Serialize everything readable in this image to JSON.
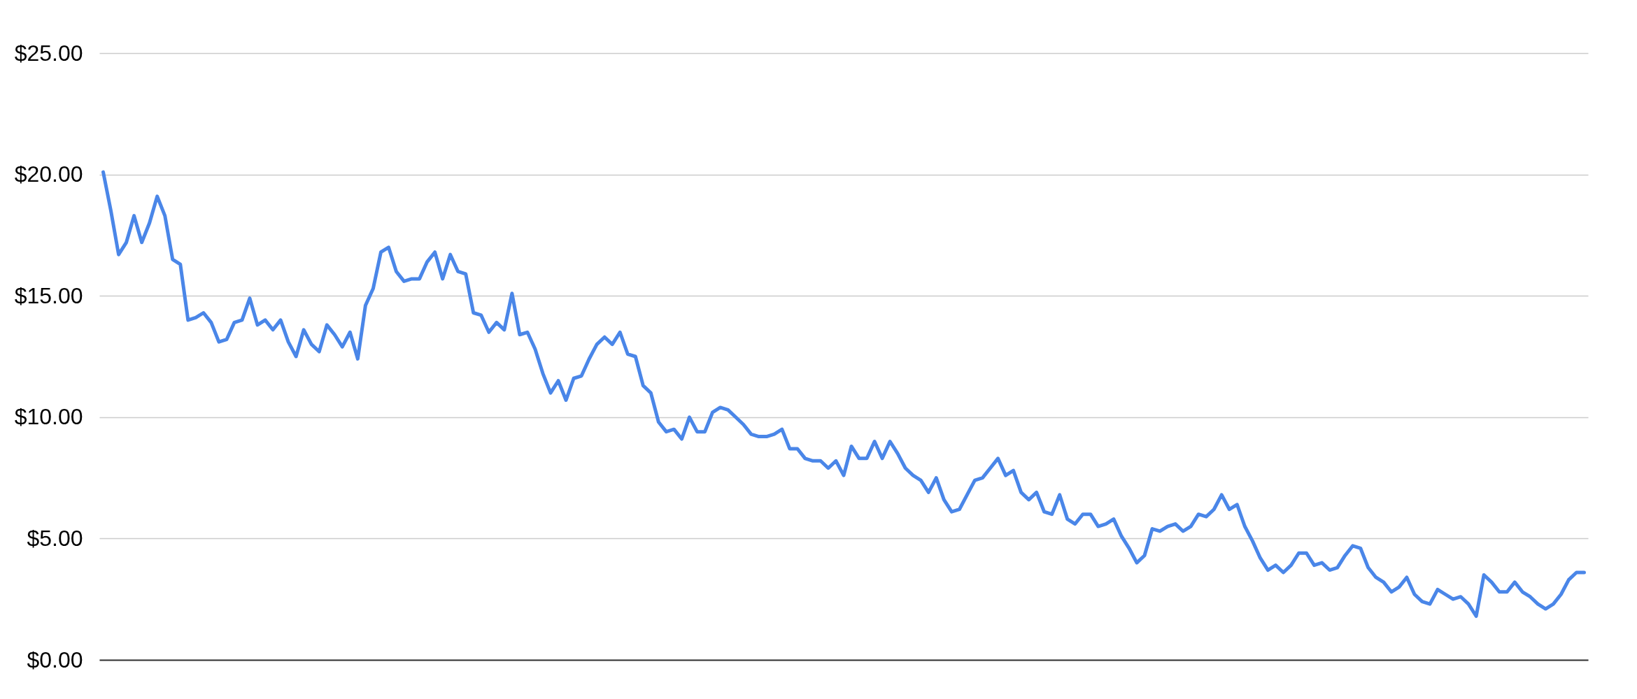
{
  "chart_data": {
    "type": "line",
    "categories": [
      null,
      null,
      null,
      null,
      null,
      null,
      null,
      null,
      null,
      null,
      null,
      null,
      null,
      null,
      null,
      null,
      null,
      null,
      null,
      null,
      null,
      null,
      null,
      null,
      null,
      null,
      null,
      null,
      null,
      null,
      null,
      null,
      null,
      null,
      null,
      null,
      null,
      null,
      null,
      null,
      null,
      null,
      null,
      null,
      null,
      null,
      null,
      null,
      null,
      null,
      null,
      null,
      null,
      null,
      null,
      null,
      null,
      null,
      null,
      null,
      null,
      null,
      null,
      null,
      null,
      null,
      null,
      null,
      null,
      null,
      null,
      null,
      null,
      null,
      null,
      null,
      null,
      null,
      null,
      null,
      null,
      null,
      null,
      null,
      null,
      null,
      null,
      null,
      null,
      null,
      null,
      null,
      null,
      null,
      null,
      null,
      null,
      null,
      null,
      null,
      null,
      null,
      null,
      null,
      null,
      null,
      null,
      null,
      null,
      null,
      null,
      null,
      null,
      null,
      null,
      null,
      null,
      null,
      null,
      null,
      null,
      null,
      null,
      null,
      null,
      null,
      null,
      null,
      null,
      null,
      null,
      null,
      null,
      null,
      null,
      null,
      null,
      null,
      null,
      null,
      null,
      null,
      null,
      null,
      null,
      null,
      null,
      null,
      null,
      null,
      null,
      null,
      null,
      null,
      null,
      null,
      null,
      null,
      null,
      null,
      null,
      null,
      null,
      null,
      null,
      null,
      null,
      null,
      null,
      null,
      null,
      null,
      null,
      null,
      null,
      null,
      null,
      null,
      null,
      null,
      null,
      null,
      null,
      null,
      null,
      null,
      null,
      null,
      null,
      null,
      null,
      null,
      null
    ],
    "series": [
      {
        "color": "#4a86e8",
        "values": [
          20.1,
          18.5,
          16.7,
          17.2,
          18.3,
          17.2,
          18.0,
          19.1,
          18.3,
          16.5,
          16.3,
          14.0,
          14.1,
          14.3,
          13.9,
          13.1,
          13.2,
          13.9,
          14.0,
          14.9,
          13.8,
          14.0,
          13.6,
          14.0,
          13.1,
          12.5,
          13.6,
          13.0,
          12.7,
          13.8,
          13.4,
          12.9,
          13.5,
          12.4,
          14.6,
          15.3,
          16.8,
          17.0,
          16.0,
          15.6,
          15.7,
          15.7,
          16.4,
          16.8,
          15.7,
          16.7,
          16.0,
          15.9,
          14.3,
          14.2,
          13.5,
          13.9,
          13.6,
          15.1,
          13.4,
          13.5,
          12.8,
          11.8,
          11.0,
          11.5,
          10.7,
          11.6,
          11.7,
          12.4,
          13.0,
          13.3,
          13.0,
          13.5,
          12.6,
          12.5,
          11.3,
          11.0,
          9.8,
          9.4,
          9.5,
          9.1,
          10.0,
          9.4,
          9.4,
          10.2,
          10.4,
          10.3,
          10.0,
          9.7,
          9.3,
          9.2,
          9.2,
          9.3,
          9.5,
          8.7,
          8.7,
          8.3,
          8.2,
          8.2,
          7.9,
          8.2,
          7.6,
          8.8,
          8.3,
          8.3,
          9.0,
          8.3,
          9.0,
          8.5,
          7.9,
          7.6,
          7.4,
          6.9,
          7.5,
          6.6,
          6.1,
          6.2,
          6.8,
          7.4,
          7.5,
          7.9,
          8.3,
          7.6,
          7.8,
          6.9,
          6.6,
          6.9,
          6.1,
          6.0,
          6.8,
          5.8,
          5.6,
          6.0,
          6.0,
          5.5,
          5.6,
          5.8,
          5.1,
          4.6,
          4.0,
          4.3,
          5.4,
          5.3,
          5.5,
          5.6,
          5.3,
          5.5,
          6.0,
          5.9,
          6.2,
          6.8,
          6.2,
          6.4,
          5.5,
          4.9,
          4.2,
          3.7,
          3.9,
          3.6,
          3.9,
          4.4,
          4.4,
          3.9,
          4.0,
          3.7,
          3.8,
          4.3,
          4.7,
          4.6,
          3.8,
          3.4,
          3.2,
          2.8,
          3.0,
          3.4,
          2.7,
          2.4,
          2.3,
          2.9,
          2.7,
          2.5,
          2.6,
          2.3,
          1.8,
          3.5,
          3.2,
          2.8,
          2.8,
          3.2,
          2.8,
          2.6,
          2.3,
          2.1,
          2.3,
          2.7,
          3.3,
          3.6,
          3.6
        ]
      }
    ],
    "ylim": [
      0,
      25
    ],
    "yticks": [
      {
        "value": 0,
        "label": "$0.00"
      },
      {
        "value": 5,
        "label": "$5.00"
      },
      {
        "value": 10,
        "label": "$10.00"
      },
      {
        "value": 15,
        "label": "$15.00"
      },
      {
        "value": 20,
        "label": "$20.00"
      },
      {
        "value": 25,
        "label": "$25.00"
      }
    ],
    "grid": "y",
    "line_style": "solid"
  }
}
